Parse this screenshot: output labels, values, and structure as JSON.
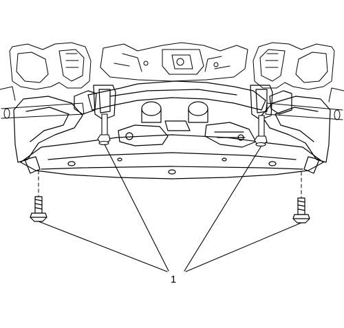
{
  "callout": {
    "label": "1"
  }
}
